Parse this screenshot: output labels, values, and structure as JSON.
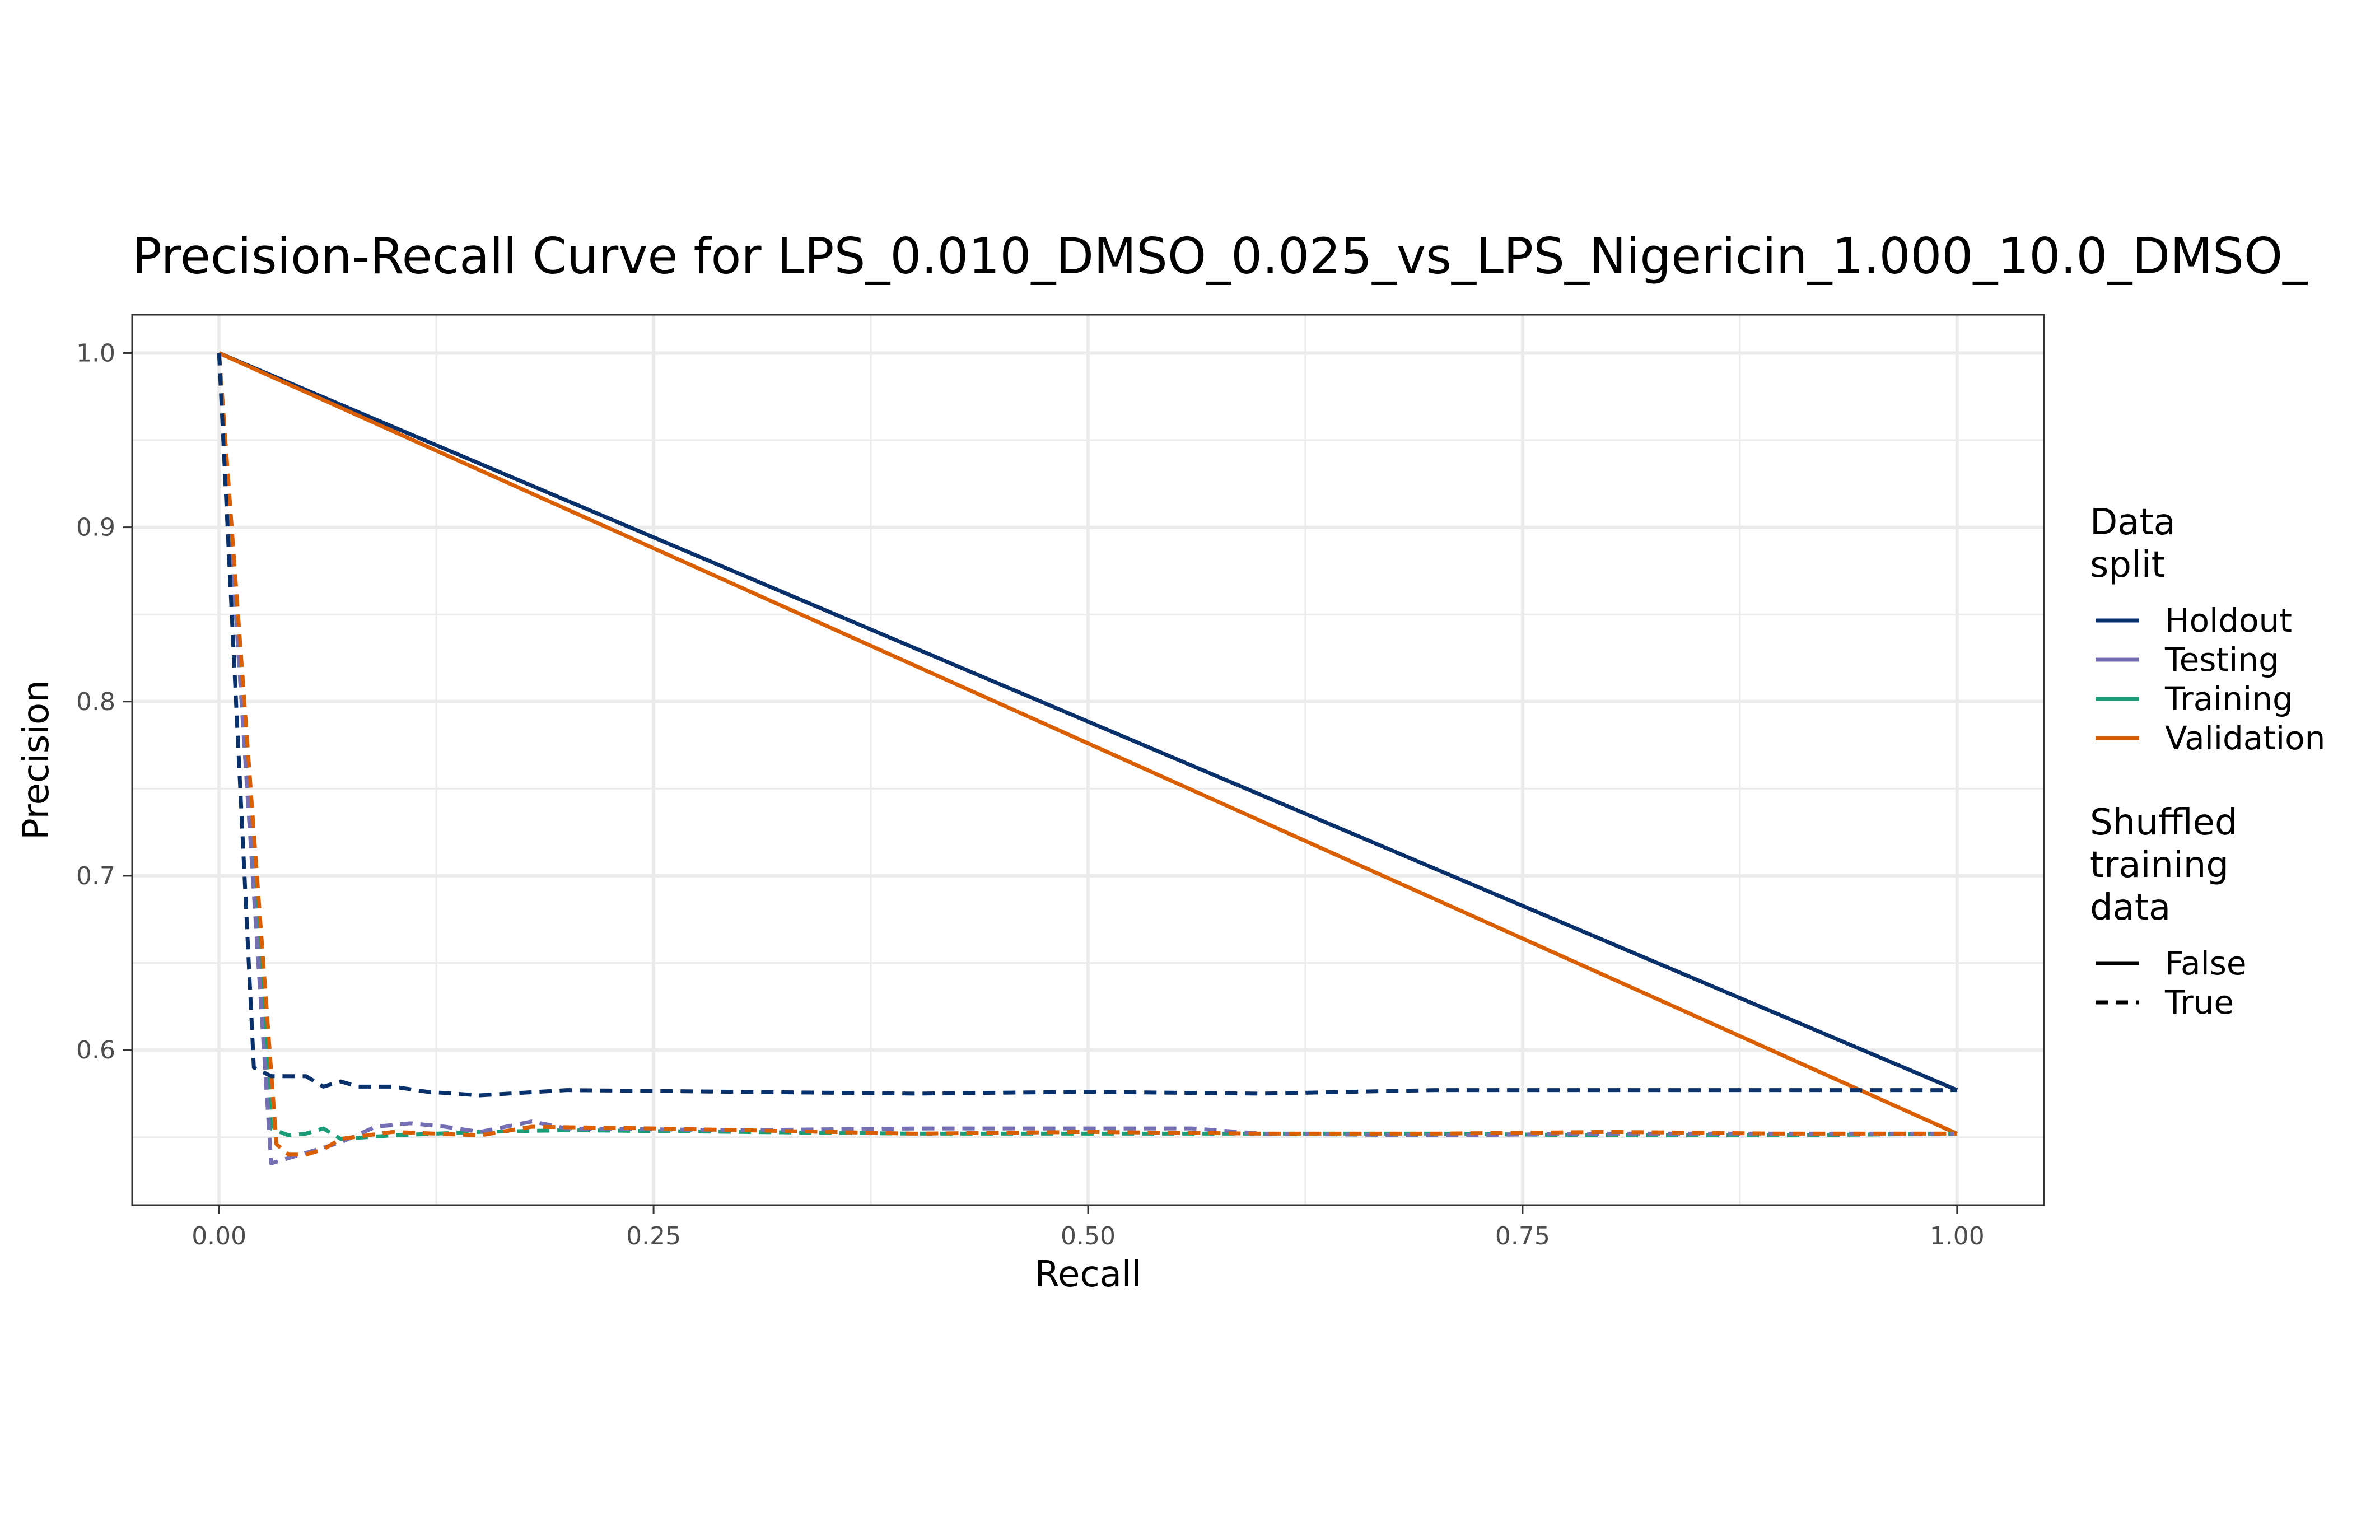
{
  "chart_data": {
    "type": "line",
    "title": "Precision-Recall Curve for LPS_0.010_DMSO_0.025_vs_LPS_Nigericin_1.000_10.0_DMSO_",
    "xlabel": "Recall",
    "ylabel": "Precision",
    "xlim": [
      -0.05,
      1.05
    ],
    "ylim": [
      0.511,
      1.022
    ],
    "x_ticks": [
      0.0,
      0.25,
      0.5,
      0.75,
      1.0
    ],
    "x_tick_labels": [
      "0.00",
      "0.25",
      "0.50",
      "0.75",
      "1.00"
    ],
    "y_ticks": [
      0.6,
      0.7,
      0.8,
      0.9,
      1.0
    ],
    "y_tick_labels": [
      "0.6",
      "0.7",
      "0.8",
      "0.9",
      "1.0"
    ],
    "grid": true,
    "legend_position": "right",
    "legend": {
      "color_title": "Data\nsplit",
      "color_entries": [
        {
          "label": "Holdout",
          "color": "#08306b"
        },
        {
          "label": "Testing",
          "color": "#7570b3"
        },
        {
          "label": "Training",
          "color": "#1b9e77"
        },
        {
          "label": "Validation",
          "color": "#d95f02"
        }
      ],
      "linetype_title": "Shuffled\ntraining\ndata",
      "linetype_entries": [
        {
          "label": "False",
          "dash": "solid"
        },
        {
          "label": "True",
          "dash": "dashed"
        }
      ]
    },
    "series": [
      {
        "split": "Holdout",
        "shuffled": "False",
        "color": "#08306b",
        "dash": "solid",
        "x": [
          0.0,
          1.0
        ],
        "y": [
          1.0,
          0.577
        ]
      },
      {
        "split": "Validation",
        "shuffled": "False",
        "color": "#d95f02",
        "dash": "solid",
        "x": [
          0.0,
          1.0
        ],
        "y": [
          1.0,
          0.552
        ]
      },
      {
        "split": "Training",
        "shuffled": "True",
        "color": "#1b9e77",
        "dash": "dashed",
        "x": [
          0.0,
          0.03,
          0.04,
          0.05,
          0.06,
          0.07,
          0.1,
          0.15,
          0.2,
          0.3,
          0.4,
          0.5,
          0.6,
          0.7,
          0.8,
          0.9,
          1.0
        ],
        "y": [
          1.0,
          0.555,
          0.551,
          0.552,
          0.555,
          0.549,
          0.551,
          0.553,
          0.554,
          0.553,
          0.552,
          0.552,
          0.552,
          0.552,
          0.551,
          0.551,
          0.552
        ]
      },
      {
        "split": "Testing",
        "shuffled": "True",
        "color": "#7570b3",
        "dash": "dashed",
        "x": [
          0.0,
          0.03,
          0.05,
          0.07,
          0.09,
          0.11,
          0.13,
          0.15,
          0.18,
          0.2,
          0.3,
          0.4,
          0.5,
          0.56,
          0.6,
          0.7,
          0.8,
          0.9,
          1.0
        ],
        "y": [
          1.0,
          0.535,
          0.541,
          0.547,
          0.556,
          0.558,
          0.556,
          0.553,
          0.559,
          0.555,
          0.554,
          0.555,
          0.555,
          0.555,
          0.552,
          0.551,
          0.552,
          0.552,
          0.552
        ]
      },
      {
        "split": "Validation",
        "shuffled": "True",
        "color": "#d95f02",
        "dash": "dashed",
        "x": [
          0.0,
          0.033,
          0.04,
          0.05,
          0.06,
          0.07,
          0.1,
          0.15,
          0.18,
          0.25,
          0.3,
          0.4,
          0.5,
          0.6,
          0.7,
          0.8,
          0.9,
          1.0
        ],
        "y": [
          1.0,
          0.546,
          0.54,
          0.54,
          0.543,
          0.549,
          0.553,
          0.551,
          0.556,
          0.555,
          0.554,
          0.552,
          0.553,
          0.552,
          0.552,
          0.553,
          0.552,
          0.552
        ]
      },
      {
        "split": "Holdout",
        "shuffled": "True",
        "color": "#08306b",
        "dash": "dashed",
        "x": [
          0.0,
          0.02,
          0.03,
          0.05,
          0.06,
          0.07,
          0.08,
          0.1,
          0.12,
          0.15,
          0.2,
          0.3,
          0.4,
          0.5,
          0.6,
          0.7,
          0.8,
          0.9,
          1.0
        ],
        "y": [
          1.0,
          0.59,
          0.585,
          0.585,
          0.579,
          0.582,
          0.579,
          0.579,
          0.576,
          0.574,
          0.577,
          0.576,
          0.575,
          0.576,
          0.575,
          0.577,
          0.577,
          0.577,
          0.577
        ]
      }
    ]
  }
}
